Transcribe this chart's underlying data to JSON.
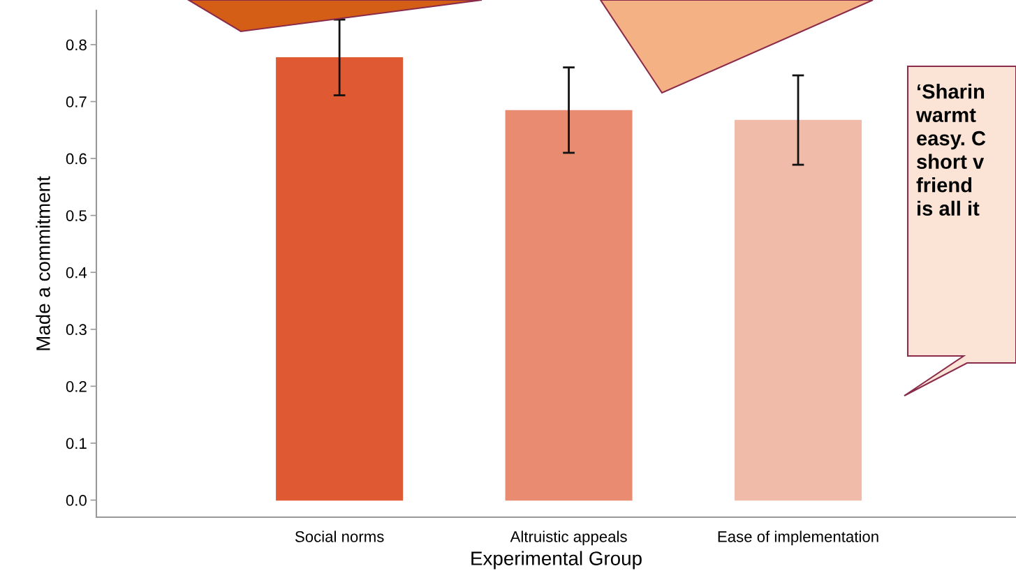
{
  "chart_data": {
    "type": "bar",
    "xlabel": "Experimental Group",
    "ylabel": "Made a commitment",
    "categories": [
      "Social norms",
      "Altruistic appeals",
      "Ease of implementation"
    ],
    "values": [
      0.777,
      0.684,
      0.667
    ],
    "colors": [
      "#df5a33",
      "#e88b70",
      "#f1bbaa"
    ],
    "errors": [
      [
        0.711,
        0.844
      ],
      [
        0.61,
        0.76
      ],
      [
        0.589,
        0.746
      ]
    ],
    "ylim": [
      -0.03,
      0.86
    ],
    "yticks": [
      {
        "value": 0,
        "label": "0.0"
      },
      0.1,
      0.2,
      0.3,
      0.4,
      0.5,
      0.6,
      0.7,
      0.8
    ],
    "grid": false,
    "annotations": [
      "‘Sharin\nwarmt\neasy. C\nshort v\nfriend\nis all it"
    ]
  }
}
